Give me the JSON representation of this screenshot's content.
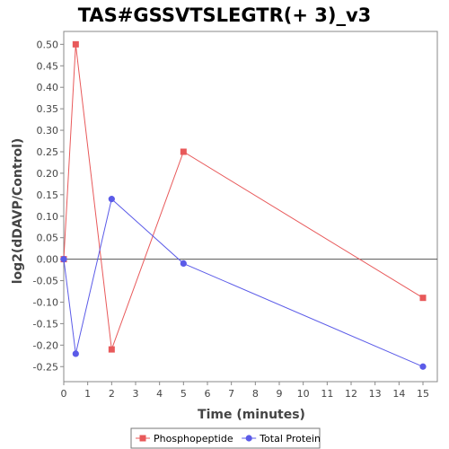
{
  "chart_data": {
    "type": "line",
    "title": "TAS#GSSVTSLEGTR(+ 3)_v3",
    "xlabel": "Time (minutes)",
    "ylabel": "log2(dDAVP/Control)",
    "xlim": [
      0,
      15.6
    ],
    "ylim": [
      -0.285,
      0.53
    ],
    "xticks": [
      0,
      1,
      2,
      3,
      4,
      5,
      6,
      7,
      8,
      9,
      10,
      11,
      12,
      13,
      14,
      15
    ],
    "yticks": [
      -0.25,
      -0.2,
      -0.15,
      -0.1,
      -0.05,
      0.0,
      0.05,
      0.1,
      0.15,
      0.2,
      0.25,
      0.3,
      0.35,
      0.4,
      0.45,
      0.5
    ],
    "ytick_labels": [
      "-0.25",
      "-0.20",
      "-0.15",
      "-0.10",
      "-0.05",
      "0.00",
      "0.05",
      "0.10",
      "0.15",
      "0.20",
      "0.25",
      "0.30",
      "0.35",
      "0.40",
      "0.45",
      "0.50"
    ],
    "zero_line": true,
    "grid": false,
    "legend_position": "bottom",
    "series": [
      {
        "name": "Phosphopeptide",
        "color": "#e8595a",
        "marker": "square",
        "x": [
          0,
          0.5,
          2,
          5,
          15
        ],
        "y": [
          0.0,
          0.5,
          -0.21,
          0.25,
          -0.09
        ]
      },
      {
        "name": "Total Protein",
        "color": "#5b5be8",
        "marker": "circle",
        "x": [
          0,
          0.5,
          2,
          5,
          15
        ],
        "y": [
          0.0,
          -0.22,
          0.14,
          -0.01,
          -0.25
        ]
      }
    ]
  }
}
